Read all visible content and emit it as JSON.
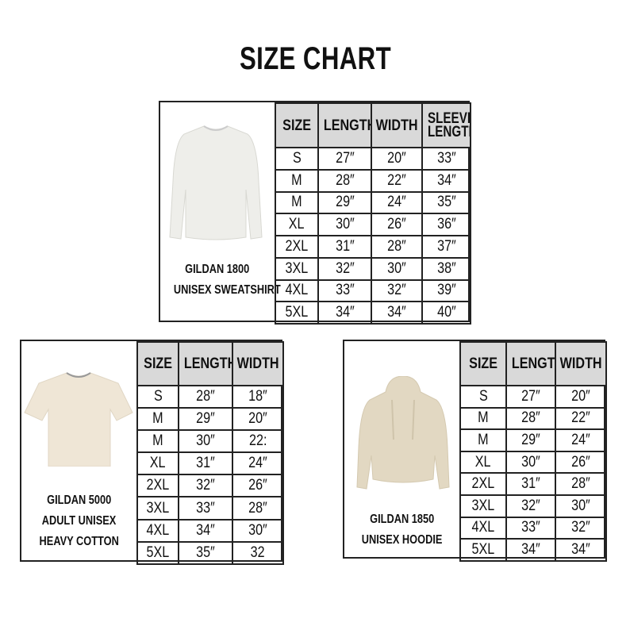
{
  "title": "SIZE CHART",
  "colors": {
    "border": "#222222",
    "header_bg": "#d9d9d9",
    "sweatshirt": "#eeeeea",
    "tshirt": "#efe6d6",
    "hoodie": "#e2d8c2"
  },
  "charts": [
    {
      "product_lines": [
        "GILDAN 1800",
        "UNISEX SWEATSHIRT"
      ],
      "image": "sweatshirt-image",
      "headers": [
        "SIZE",
        "LENGTH",
        "WIDTH",
        "SLEEVE LENGTH"
      ],
      "rows": [
        [
          "S",
          "27″",
          "20″",
          "33″"
        ],
        [
          "M",
          "28″",
          "22″",
          "34″"
        ],
        [
          "M",
          "29″",
          "24″",
          "35″"
        ],
        [
          "XL",
          "30″",
          "26″",
          "36″"
        ],
        [
          "2XL",
          "31″",
          "28″",
          "37″"
        ],
        [
          "3XL",
          "32″",
          "30″",
          "38″"
        ],
        [
          "4XL",
          "33″",
          "32″",
          "39″"
        ],
        [
          "5XL",
          "34″",
          "34″",
          "40″"
        ]
      ]
    },
    {
      "product_lines": [
        "GILDAN 5000",
        "ADULT UNISEX",
        "HEAVY COTTON"
      ],
      "image": "tshirt-image",
      "headers": [
        "SIZE",
        "LENGTH",
        "WIDTH"
      ],
      "rows": [
        [
          "S",
          "28″",
          "18″"
        ],
        [
          "M",
          "29″",
          "20″"
        ],
        [
          "M",
          "30″",
          "22:"
        ],
        [
          "XL",
          "31″",
          "24″"
        ],
        [
          "2XL",
          "32″",
          "26″"
        ],
        [
          "3XL",
          "33″",
          "28″"
        ],
        [
          "4XL",
          "34″",
          "30″"
        ],
        [
          "5XL",
          "35″",
          "32"
        ]
      ]
    },
    {
      "product_lines": [
        "GILDAN 1850",
        "UNISEX HOODIE"
      ],
      "image": "hoodie-image",
      "headers": [
        "SIZE",
        "LENGTH",
        "WIDTH"
      ],
      "rows": [
        [
          "S",
          "27″",
          "20″"
        ],
        [
          "M",
          "28″",
          "22″"
        ],
        [
          "M",
          "29″",
          "24″"
        ],
        [
          "XL",
          "30″",
          "26″"
        ],
        [
          "2XL",
          "31″",
          "28″"
        ],
        [
          "3XL",
          "32″",
          "30″"
        ],
        [
          "4XL",
          "33″",
          "32″"
        ],
        [
          "5XL",
          "34″",
          "34″"
        ]
      ]
    }
  ]
}
